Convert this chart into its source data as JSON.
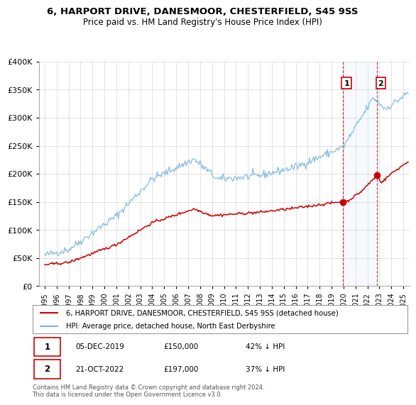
{
  "title": "6, HARPORT DRIVE, DANESMOOR, CHESTERFIELD, S45 9SS",
  "subtitle": "Price paid vs. HM Land Registry's House Price Index (HPI)",
  "legend_line1": "6, HARPORT DRIVE, DANESMOOR, CHESTERFIELD, S45 9SS (detached house)",
  "legend_line2": "HPI: Average price, detached house, North East Derbyshire",
  "annotation1_date": "05-DEC-2019",
  "annotation1_price": "£150,000",
  "annotation1_hpi": "42% ↓ HPI",
  "annotation2_date": "21-OCT-2022",
  "annotation2_price": "£197,000",
  "annotation2_hpi": "37% ↓ HPI",
  "footer": "Contains HM Land Registry data © Crown copyright and database right 2024.\nThis data is licensed under the Open Government Licence v3.0.",
  "sale1_x": 2019.92,
  "sale1_y": 150000,
  "sale2_x": 2022.79,
  "sale2_y": 197000,
  "hpi_color": "#7ab5d9",
  "sale_color": "#cc0000",
  "shade_color": "#ddeeff",
  "ylim": [
    0,
    400000
  ],
  "xlim": [
    1994.5,
    2025.5
  ],
  "background_color": "#ffffff",
  "grid_color": "#cccccc"
}
